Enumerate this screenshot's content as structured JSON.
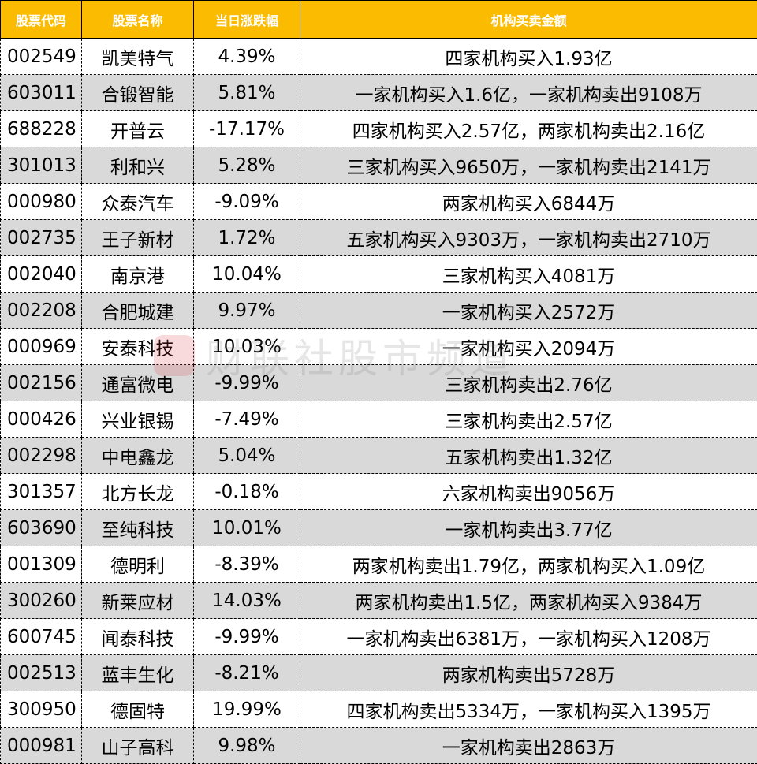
{
  "colors": {
    "header_bg": "#fbbb00",
    "alt_row": "#d9d9d9"
  },
  "headers": [
    "股票代码",
    "股票名称",
    "当日涨跌幅",
    "机构买卖金额"
  ],
  "rows": [
    {
      "code": "002549",
      "name": "凯美特气",
      "change": "4.39%",
      "inst": "四家机构买入1.93亿"
    },
    {
      "code": "603011",
      "name": "合锻智能",
      "change": "5.81%",
      "inst": "一家机构买入1.6亿，一家机构卖出9108万"
    },
    {
      "code": "688228",
      "name": "开普云",
      "change": "-17.17%",
      "inst": "四家机构买入2.57亿，两家机构卖出2.16亿"
    },
    {
      "code": "301013",
      "name": "利和兴",
      "change": "5.28%",
      "inst": "三家机构买入9650万，一家机构卖出2141万"
    },
    {
      "code": "000980",
      "name": "众泰汽车",
      "change": "-9.09%",
      "inst": "两家机构买入6844万"
    },
    {
      "code": "002735",
      "name": "王子新材",
      "change": "1.72%",
      "inst": "五家机构买入9303万，一家机构卖出2710万"
    },
    {
      "code": "002040",
      "name": "南京港",
      "change": "10.04%",
      "inst": "三家机构买入4081万"
    },
    {
      "code": "002208",
      "name": "合肥城建",
      "change": "9.97%",
      "inst": "一家机构买入2572万"
    },
    {
      "code": "000969",
      "name": "安泰科技",
      "change": "10.03%",
      "inst": "一家机构买入2094万"
    },
    {
      "code": "002156",
      "name": "通富微电",
      "change": "-9.99%",
      "inst": "三家机构卖出2.76亿"
    },
    {
      "code": "000426",
      "name": "兴业银锡",
      "change": "-7.49%",
      "inst": "三家机构卖出2.57亿"
    },
    {
      "code": "002298",
      "name": "中电鑫龙",
      "change": "5.04%",
      "inst": "五家机构卖出1.32亿"
    },
    {
      "code": "301357",
      "name": "北方长龙",
      "change": "-0.18%",
      "inst": "六家机构卖出9056万"
    },
    {
      "code": "603690",
      "name": "至纯科技",
      "change": "10.01%",
      "inst": "一家机构卖出3.77亿"
    },
    {
      "code": "001309",
      "name": "德明利",
      "change": "-8.39%",
      "inst": "两家机构卖出1.79亿，两家机构买入1.09亿"
    },
    {
      "code": "300260",
      "name": "新莱应材",
      "change": "14.03%",
      "inst": "两家机构卖出1.5亿，两家机构买入9384万"
    },
    {
      "code": "600745",
      "name": "闻泰科技",
      "change": "-9.99%",
      "inst": "一家机构卖出6381万，一家机构买入1208万"
    },
    {
      "code": "002513",
      "name": "蓝丰生化",
      "change": "-8.21%",
      "inst": "两家机构卖出5728万"
    },
    {
      "code": "300950",
      "name": "德固特",
      "change": "19.99%",
      "inst": "四家机构卖出5334万，一家机构买入1395万"
    },
    {
      "code": "000981",
      "name": "山子高科",
      "change": "9.98%",
      "inst": "一家机构卖出2863万"
    }
  ],
  "watermark": {
    "logo": "C",
    "text": "财联社股市频道"
  }
}
